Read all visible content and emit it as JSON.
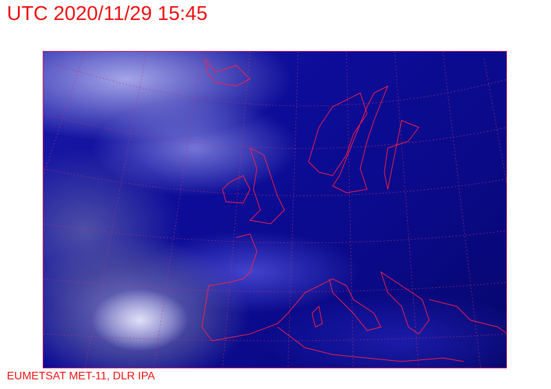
{
  "header": {
    "title": "UTC 2020/11/29 15:45"
  },
  "footer": {
    "credit": "EUMETSAT MET-11, DLR IPA"
  },
  "map": {
    "coastline_color": "#ff2040",
    "graticule_color": "#c03070",
    "text_color": "#ee1111"
  }
}
